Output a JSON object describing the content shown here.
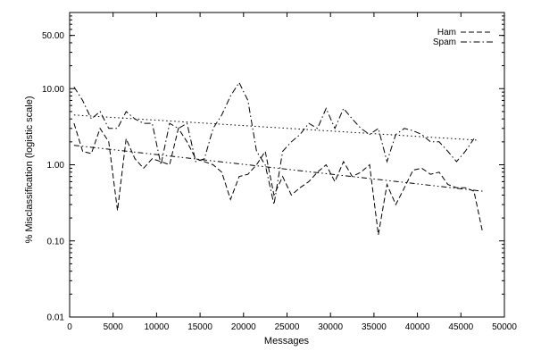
{
  "chart_data": {
    "type": "line",
    "title": "",
    "xlabel": "Messages",
    "ylabel": "% Misclassification (logistic scale)",
    "xlim": [
      0,
      50000
    ],
    "ylim": [
      0.01,
      100
    ],
    "y_scale": "log",
    "grid": false,
    "legend_position": "top-right",
    "x_ticks": [
      0,
      5000,
      10000,
      15000,
      20000,
      25000,
      30000,
      35000,
      40000,
      45000,
      50000
    ],
    "x_tick_labels": [
      "0",
      "5000",
      "10000",
      "15000",
      "20000",
      "25000",
      "30000",
      "35000",
      "40000",
      "45000",
      "50000"
    ],
    "y_ticks": [
      0.01,
      0.1,
      1,
      10,
      50
    ],
    "y_tick_labels": [
      "0.01",
      "0.10",
      "1.00",
      "10.00",
      "50.00"
    ],
    "legend": [
      "Ham",
      "Spam"
    ],
    "series": [
      {
        "name": "Ham",
        "style": "dash",
        "x": [
          500,
          1500,
          2500,
          3500,
          4500,
          5500,
          6500,
          7500,
          8500,
          9500,
          10500,
          11500,
          12500,
          13500,
          14500,
          15500,
          16500,
          17500,
          18500,
          19500,
          20500,
          21500,
          22500,
          23500,
          24500,
          25500,
          26500,
          27500,
          28500,
          29500,
          30500,
          31500,
          32500,
          33500,
          34500,
          35500,
          36500,
          37500,
          38500,
          39500,
          40500,
          41500,
          42500,
          43500,
          44500,
          45500,
          46500,
          47500
        ],
        "y": [
          3.5,
          1.5,
          1.4,
          3.0,
          2.0,
          0.25,
          2.2,
          1.2,
          0.9,
          1.2,
          1.1,
          1.0,
          3.0,
          2.0,
          1.2,
          1.1,
          1.0,
          0.8,
          0.35,
          0.7,
          0.75,
          1.0,
          1.5,
          0.4,
          0.7,
          0.4,
          0.5,
          0.6,
          0.8,
          1.0,
          0.6,
          1.1,
          0.7,
          0.8,
          1.0,
          0.12,
          0.55,
          0.3,
          0.5,
          0.85,
          0.9,
          0.75,
          0.8,
          0.55,
          0.5,
          0.5,
          0.45,
          0.13
        ]
      },
      {
        "name": "Spam",
        "style": "dash-dot",
        "x": [
          500,
          1500,
          2500,
          3500,
          4500,
          5500,
          6500,
          7500,
          8500,
          9500,
          10500,
          11500,
          12500,
          13500,
          14500,
          15500,
          16500,
          17500,
          18500,
          19500,
          20500,
          21500,
          22500,
          23500,
          24500,
          25500,
          26500,
          27500,
          28500,
          29500,
          30500,
          31500,
          32500,
          33500,
          34500,
          35500,
          36500,
          37500,
          38500,
          39500,
          40500,
          41500,
          42500,
          43500,
          44500,
          45500,
          46500
        ],
        "y": [
          10.5,
          7.0,
          4.0,
          5.0,
          3.0,
          3.0,
          5.0,
          4.0,
          3.5,
          3.5,
          1.0,
          3.5,
          3.0,
          3.5,
          1.1,
          1.2,
          3.0,
          4.5,
          8.0,
          12.0,
          7.0,
          1.5,
          1.0,
          0.3,
          1.5,
          2.0,
          2.5,
          3.5,
          3.0,
          5.5,
          3.0,
          5.5,
          4.0,
          3.0,
          2.5,
          3.0,
          1.1,
          2.5,
          3.0,
          2.8,
          2.5,
          2.0,
          2.0,
          1.5,
          1.1,
          1.5,
          2.2
        ]
      },
      {
        "name": "",
        "style": "dotted",
        "x": [
          500,
          47000
        ],
        "y": [
          4.5,
          2.1
        ]
      },
      {
        "name": "",
        "style": "dash-dot-dot",
        "x": [
          500,
          47500
        ],
        "y": [
          1.8,
          0.45
        ]
      }
    ]
  }
}
